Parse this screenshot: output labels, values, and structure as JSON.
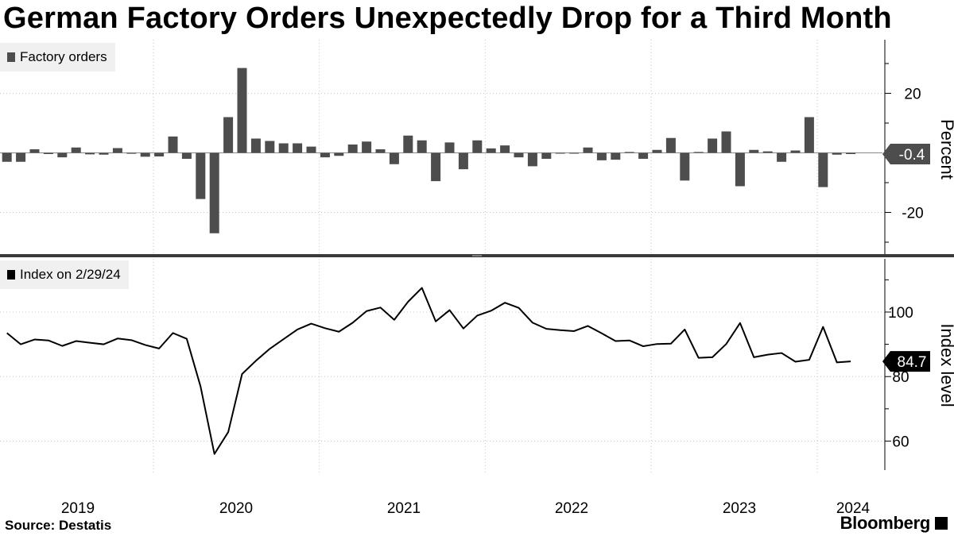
{
  "title": "German Factory Orders Unexpectedly Drop for a Third Month",
  "source": "Source:  Destatis",
  "brand": "Bloomberg",
  "x_axis": {
    "labels": [
      "2019",
      "2020",
      "2021",
      "2022",
      "2023",
      "2024"
    ]
  },
  "colors": {
    "bar": "#4d4d4d",
    "line": "#000000",
    "badge_top": "#4d4d4d",
    "badge_bottom": "#000000"
  },
  "chart_data": [
    {
      "type": "bar",
      "legend": "Factory orders",
      "ylabel": "Percent",
      "ylim": [
        -34,
        38
      ],
      "yticks": [
        20,
        -20
      ],
      "ytick_labels": [
        "20",
        "-20"
      ],
      "last_value_label": "-0.4",
      "grid": true,
      "x_start": "2019-01",
      "values": [
        -3.0,
        -3.0,
        1.2,
        -0.4,
        -1.5,
        1.8,
        -0.5,
        -0.6,
        1.6,
        -0.3,
        -1.3,
        -1.2,
        5.5,
        -2.0,
        -15.5,
        -27.0,
        12.0,
        28.5,
        4.8,
        4.0,
        3.2,
        3.2,
        2.1,
        -1.5,
        -1.0,
        2.8,
        3.8,
        1.2,
        -3.8,
        5.8,
        4.2,
        -9.5,
        3.5,
        -5.5,
        4.2,
        1.5,
        2.5,
        -1.5,
        -4.5,
        -2.0,
        -0.2,
        -0.2,
        1.8,
        -2.5,
        -2.3,
        0.3,
        -2.0,
        1.0,
        5.0,
        -9.3,
        0.3,
        4.8,
        7.2,
        -11.2,
        1.0,
        0.5,
        -3.0,
        0.8,
        12.0,
        -11.5,
        -0.6,
        -0.4
      ]
    },
    {
      "type": "line",
      "legend": "Index on 2/29/24",
      "ylabel": "Index level",
      "ylim": [
        51,
        116
      ],
      "yticks": [
        100,
        80,
        60
      ],
      "ytick_labels": [
        "100",
        "80",
        "60"
      ],
      "last_value_label": "84.7",
      "grid": true,
      "x_start": "2019-01",
      "values": [
        93.5,
        90.0,
        91.5,
        91.2,
        89.5,
        91.0,
        90.5,
        90.0,
        91.8,
        91.3,
        89.8,
        88.7,
        93.5,
        91.7,
        76.9,
        56.0,
        62.8,
        80.8,
        84.9,
        88.6,
        91.6,
        94.6,
        96.4,
        95.0,
        93.9,
        96.7,
        100.3,
        101.4,
        97.6,
        103.2,
        107.5,
        97.1,
        100.6,
        94.9,
        98.9,
        100.4,
        102.9,
        101.3,
        96.7,
        94.8,
        94.4,
        94.1,
        95.7,
        93.4,
        91.0,
        91.2,
        89.4,
        90.1,
        90.2,
        94.6,
        85.8,
        86.0,
        90.1,
        96.6,
        86.0,
        86.8,
        87.3,
        84.6,
        85.2,
        95.4,
        84.4,
        84.7
      ]
    }
  ]
}
